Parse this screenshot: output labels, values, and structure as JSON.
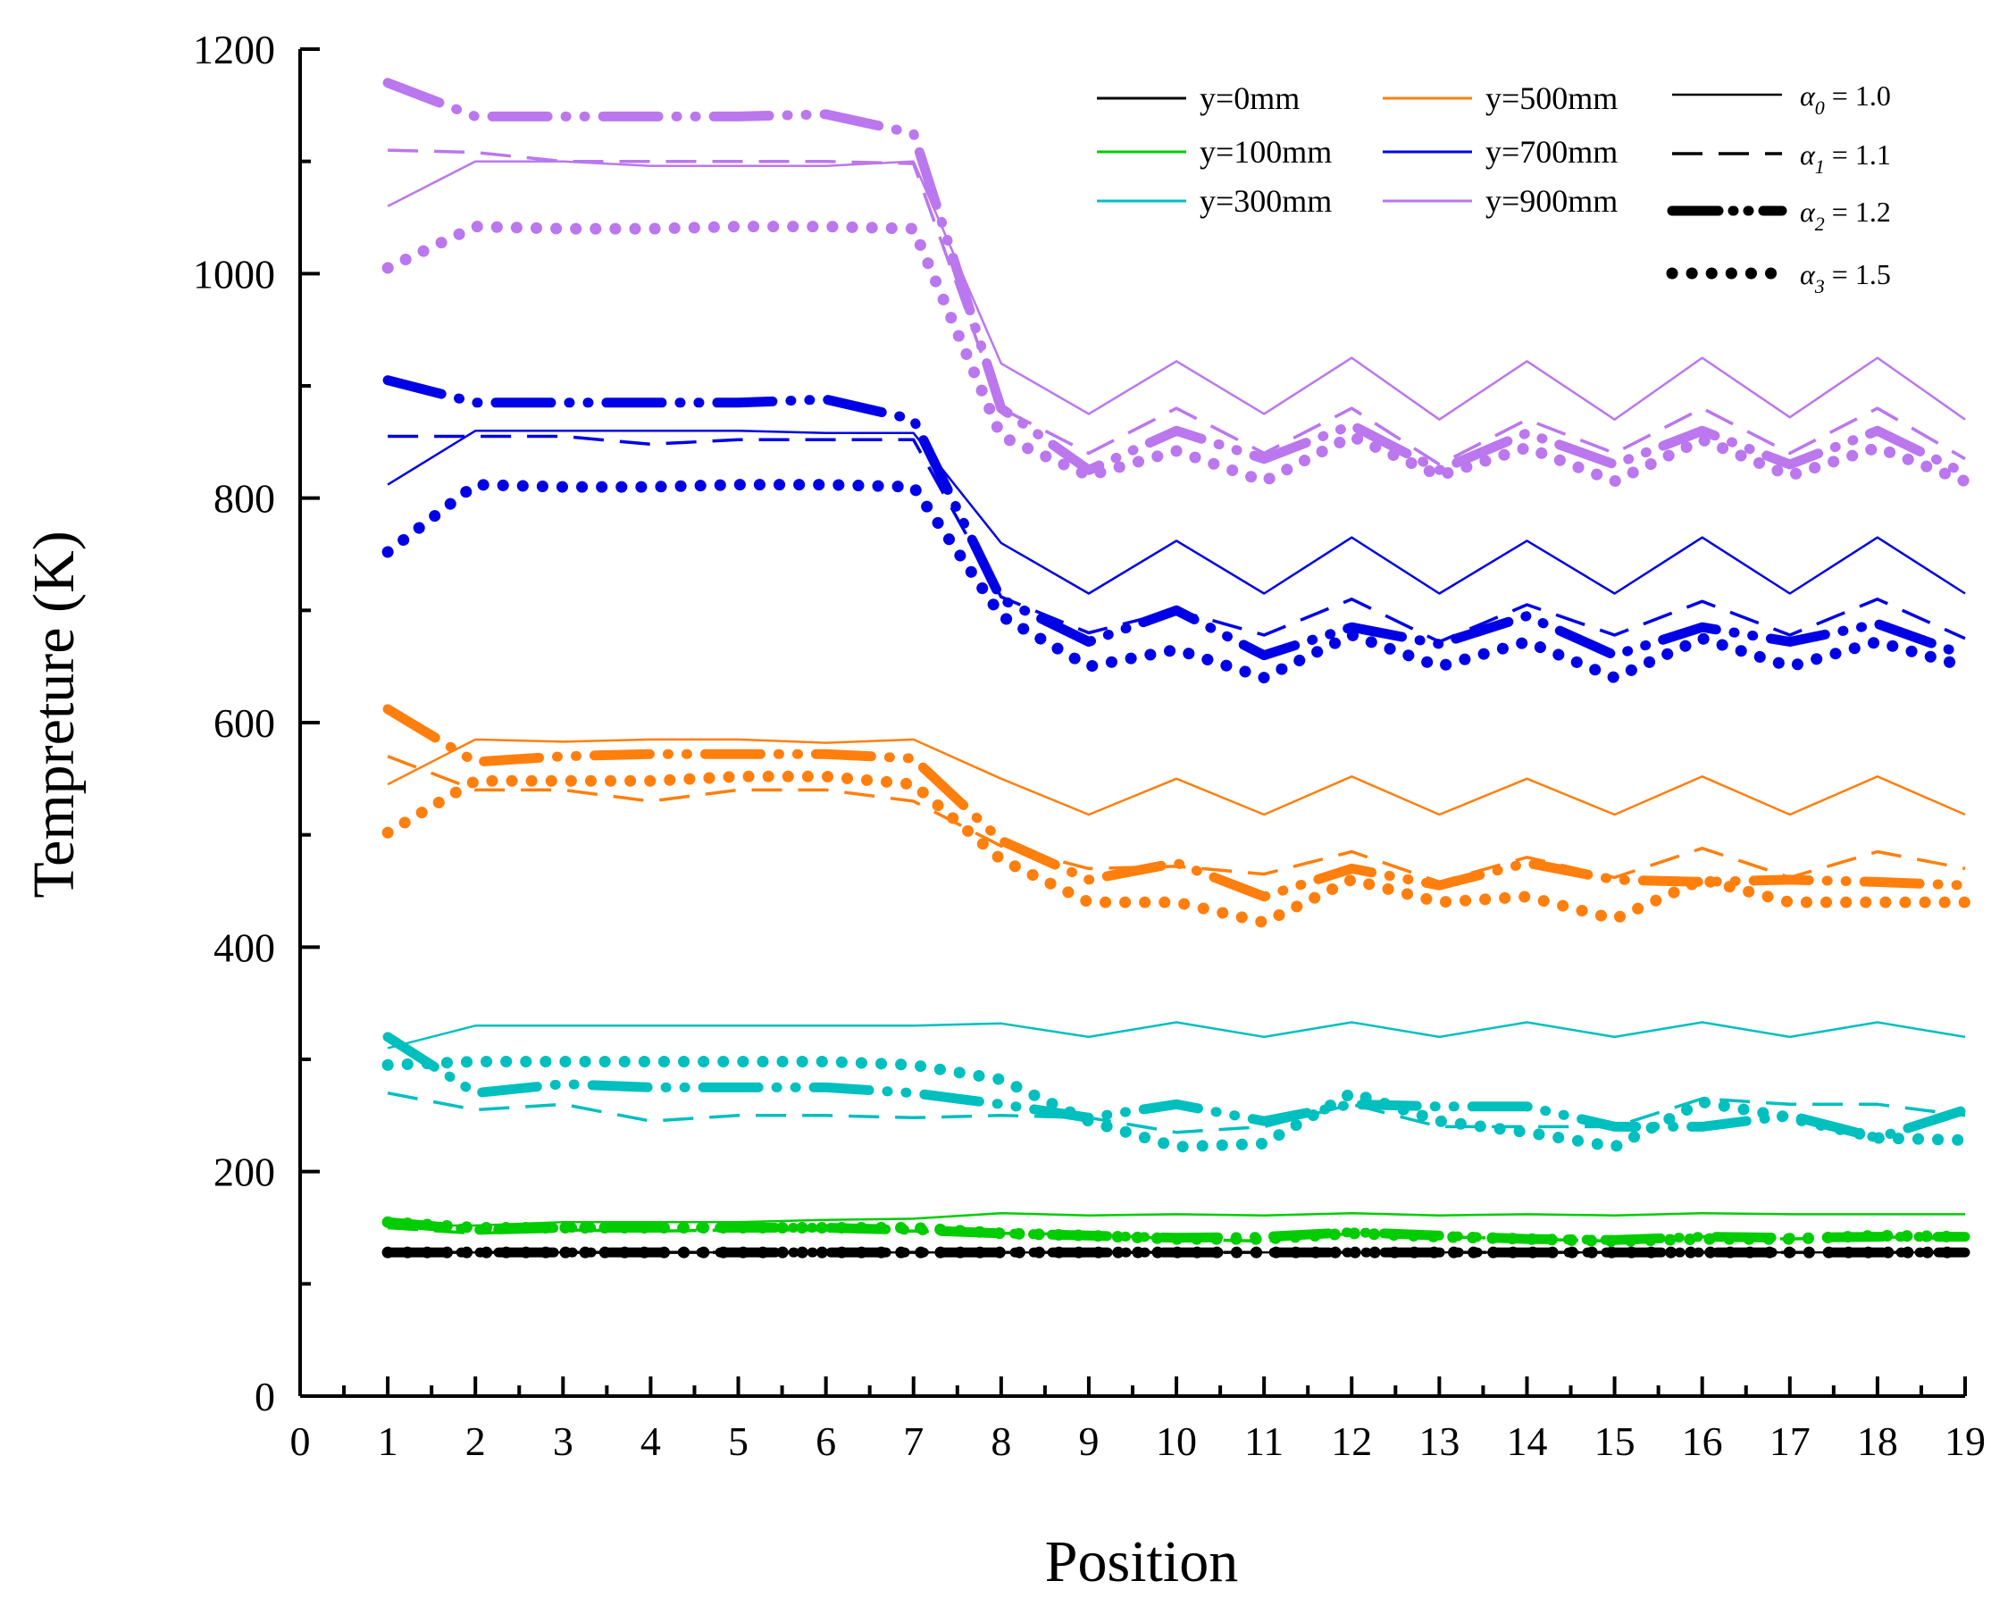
{
  "chart_data": {
    "type": "line",
    "title": "",
    "xlabel": "Position",
    "ylabel": "Tempreture (K)",
    "xlim": [
      0,
      19
    ],
    "ylim": [
      0,
      1200
    ],
    "x_ticks": [
      0,
      1,
      2,
      3,
      4,
      5,
      6,
      7,
      8,
      9,
      10,
      11,
      12,
      13,
      14,
      15,
      16,
      17,
      18,
      19
    ],
    "y_ticks": [
      0,
      200,
      400,
      600,
      800,
      1000,
      1200
    ],
    "grid": false,
    "legend_position": "top-right",
    "x": [
      1,
      2,
      3,
      4,
      5,
      6,
      7,
      8,
      9,
      10,
      11,
      12,
      13,
      14,
      15,
      16,
      17,
      18,
      19
    ],
    "heights": [
      {
        "name": "y=0mm",
        "color": "#000000"
      },
      {
        "name": "y=100mm",
        "color": "#00cc00"
      },
      {
        "name": "y=300mm",
        "color": "#00bfbf"
      },
      {
        "name": "y=500mm",
        "color": "#ff7f0e"
      },
      {
        "name": "y=700mm",
        "color": "#0000e6"
      },
      {
        "name": "y=900mm",
        "color": "#bb77ee"
      }
    ],
    "coefficients": [
      {
        "name": "α",
        "sub": "0",
        "suffix": " = 1.0",
        "style": "solid"
      },
      {
        "name": "α",
        "sub": "1",
        "suffix": " = 1.1",
        "style": "dash"
      },
      {
        "name": "α",
        "sub": "2",
        "suffix": " = 1.2",
        "style": "dashdot"
      },
      {
        "name": "α",
        "sub": "3",
        "suffix": " = 1.5",
        "style": "dot"
      }
    ],
    "series": [
      {
        "height": "y=0mm",
        "alpha": "α0 = 1.0",
        "values": [
          128,
          128,
          128,
          128,
          128,
          128,
          128,
          128,
          128,
          128,
          128,
          128,
          128,
          128,
          128,
          128,
          128,
          128,
          128
        ]
      },
      {
        "height": "y=0mm",
        "alpha": "α1 = 1.1",
        "values": [
          128,
          128,
          128,
          128,
          128,
          128,
          128,
          128,
          128,
          128,
          128,
          128,
          128,
          128,
          128,
          128,
          128,
          128,
          128
        ]
      },
      {
        "height": "y=0mm",
        "alpha": "α2 = 1.2",
        "values": [
          128,
          128,
          128,
          128,
          128,
          128,
          128,
          128,
          128,
          128,
          128,
          128,
          128,
          128,
          128,
          128,
          128,
          128,
          128
        ]
      },
      {
        "height": "y=0mm",
        "alpha": "α3 = 1.5",
        "values": [
          128,
          128,
          128,
          128,
          128,
          128,
          128,
          128,
          128,
          128,
          128,
          128,
          128,
          128,
          128,
          128,
          128,
          128,
          128
        ]
      },
      {
        "height": "y=100mm",
        "alpha": "α0 = 1.0",
        "values": [
          152,
          152,
          155,
          155,
          155,
          157,
          158,
          163,
          161,
          162,
          161,
          163,
          161,
          162,
          161,
          163,
          162,
          162,
          162
        ]
      },
      {
        "height": "y=100mm",
        "alpha": "α1 = 1.1",
        "values": [
          150,
          145,
          148,
          147,
          148,
          148,
          147,
          145,
          144,
          140,
          138,
          145,
          142,
          140,
          138,
          142,
          140,
          142,
          140
        ]
      },
      {
        "height": "y=100mm",
        "alpha": "α2 = 1.2",
        "values": [
          155,
          148,
          150,
          150,
          150,
          150,
          148,
          145,
          143,
          141,
          142,
          146,
          143,
          140,
          139,
          142,
          141,
          142,
          142
        ]
      },
      {
        "height": "y=100mm",
        "alpha": "α3 = 1.5",
        "values": [
          155,
          150,
          150,
          150,
          150,
          150,
          150,
          145,
          143,
          140,
          140,
          145,
          142,
          140,
          138,
          140,
          140,
          143,
          142
        ]
      },
      {
        "height": "y=300mm",
        "alpha": "α0 = 1.0",
        "values": [
          310,
          330,
          330,
          330,
          330,
          330,
          330,
          332,
          320,
          333,
          320,
          333,
          320,
          333,
          320,
          333,
          320,
          333,
          320
        ]
      },
      {
        "height": "y=300mm",
        "alpha": "α1 = 1.1",
        "values": [
          270,
          255,
          260,
          245,
          250,
          250,
          248,
          250,
          248,
          235,
          240,
          260,
          240,
          240,
          240,
          265,
          260,
          260,
          250
        ]
      },
      {
        "height": "y=300mm",
        "alpha": "α2 = 1.2",
        "values": [
          320,
          270,
          278,
          275,
          275,
          275,
          270,
          260,
          248,
          260,
          245,
          260,
          258,
          258,
          240,
          240,
          250,
          230,
          255
        ]
      },
      {
        "height": "y=300mm",
        "alpha": "α3 = 1.5",
        "values": [
          295,
          298,
          298,
          298,
          298,
          298,
          295,
          282,
          245,
          222,
          225,
          270,
          245,
          235,
          222,
          262,
          248,
          230,
          228
        ]
      },
      {
        "height": "y=500mm",
        "alpha": "α0 = 1.0",
        "values": [
          545,
          585,
          583,
          585,
          585,
          582,
          585,
          550,
          518,
          550,
          518,
          552,
          518,
          550,
          518,
          552,
          518,
          552,
          518
        ]
      },
      {
        "height": "y=500mm",
        "alpha": "α1 = 1.1",
        "values": [
          570,
          540,
          540,
          530,
          540,
          540,
          530,
          490,
          470,
          472,
          465,
          485,
          458,
          480,
          462,
          488,
          462,
          485,
          470
        ]
      },
      {
        "height": "y=500mm",
        "alpha": "α2 = 1.2",
        "values": [
          612,
          565,
          570,
          572,
          572,
          572,
          568,
          495,
          460,
          475,
          445,
          470,
          455,
          475,
          460,
          458,
          460,
          458,
          455
        ]
      },
      {
        "height": "y=500mm",
        "alpha": "α3 = 1.5",
        "values": [
          502,
          548,
          548,
          548,
          552,
          552,
          545,
          478,
          440,
          440,
          422,
          460,
          440,
          445,
          425,
          460,
          440,
          440,
          440
        ]
      },
      {
        "height": "y=700mm",
        "alpha": "α0 = 1.0",
        "values": [
          812,
          860,
          860,
          860,
          860,
          858,
          858,
          760,
          715,
          762,
          715,
          765,
          715,
          762,
          715,
          765,
          715,
          765,
          715
        ]
      },
      {
        "height": "y=700mm",
        "alpha": "α1 = 1.1",
        "values": [
          855,
          855,
          855,
          848,
          852,
          852,
          852,
          712,
          680,
          700,
          678,
          710,
          672,
          705,
          678,
          708,
          678,
          710,
          675
        ]
      },
      {
        "height": "y=700mm",
        "alpha": "α2 = 1.2",
        "values": [
          905,
          885,
          885,
          885,
          885,
          888,
          870,
          710,
          672,
          700,
          660,
          685,
          670,
          695,
          660,
          685,
          672,
          688,
          660
        ]
      },
      {
        "height": "y=700mm",
        "alpha": "α3 = 1.5",
        "values": [
          752,
          812,
          810,
          810,
          812,
          812,
          810,
          695,
          650,
          665,
          640,
          678,
          650,
          672,
          640,
          675,
          650,
          672,
          650
        ]
      },
      {
        "height": "y=900mm",
        "alpha": "α0 = 1.0",
        "values": [
          1060,
          1100,
          1100,
          1096,
          1096,
          1096,
          1100,
          920,
          875,
          922,
          875,
          925,
          870,
          922,
          870,
          925,
          872,
          925,
          870
        ]
      },
      {
        "height": "y=900mm",
        "alpha": "α1 = 1.1",
        "values": [
          1110,
          1108,
          1100,
          1100,
          1100,
          1100,
          1098,
          880,
          840,
          880,
          840,
          880,
          830,
          870,
          840,
          880,
          840,
          880,
          835
        ]
      },
      {
        "height": "y=900mm",
        "alpha": "α2 = 1.2",
        "values": [
          1170,
          1140,
          1140,
          1140,
          1140,
          1142,
          1125,
          880,
          825,
          860,
          835,
          865,
          825,
          858,
          830,
          860,
          830,
          860,
          822
        ]
      },
      {
        "height": "y=900mm",
        "alpha": "α3 = 1.5",
        "values": [
          1005,
          1042,
          1040,
          1040,
          1042,
          1042,
          1040,
          855,
          820,
          842,
          815,
          855,
          820,
          845,
          815,
          852,
          820,
          845,
          815
        ]
      }
    ]
  }
}
